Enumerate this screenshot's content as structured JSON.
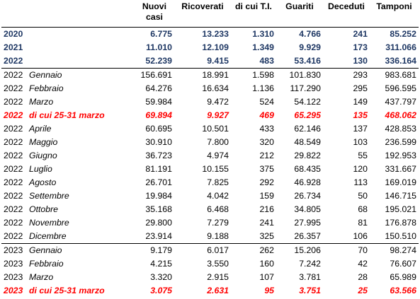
{
  "headers": [
    "",
    "Nuovi casi",
    "Ricoverati",
    "di cui T.I.",
    "Guariti",
    "Deceduti",
    "Tamponi"
  ],
  "header_nuovi_1": "Nuovi",
  "header_nuovi_2": "casi",
  "annual": [
    {
      "year": "2020",
      "nuovi": "6.775",
      "ricoverati": "13.233",
      "ti": "1.310",
      "guariti": "4.766",
      "deceduti": "241",
      "tamponi": "85.252"
    },
    {
      "year": "2021",
      "nuovi": "11.010",
      "ricoverati": "12.109",
      "ti": "1.349",
      "guariti": "9.929",
      "deceduti": "173",
      "tamponi": "311.066"
    },
    {
      "year": "2022",
      "nuovi": "52.239",
      "ricoverati": "9.415",
      "ti": "483",
      "guariti": "53.416",
      "deceduti": "130",
      "tamponi": "336.164"
    }
  ],
  "rows2022": [
    {
      "year": "2022",
      "month": "Gennaio",
      "nuovi": "156.691",
      "ricoverati": "18.991",
      "ti": "1.598",
      "guariti": "101.830",
      "deceduti": "293",
      "tamponi": "983.681"
    },
    {
      "year": "2022",
      "month": "Febbraio",
      "nuovi": "64.276",
      "ricoverati": "16.634",
      "ti": "1.136",
      "guariti": "117.290",
      "deceduti": "295",
      "tamponi": "596.595"
    },
    {
      "year": "2022",
      "month": "Marzo",
      "nuovi": "59.984",
      "ricoverati": "9.472",
      "ti": "524",
      "guariti": "54.122",
      "deceduti": "149",
      "tamponi": "437.797"
    },
    {
      "year": "2022",
      "month": "di cui 25-31 marzo",
      "nuovi": "69.894",
      "ricoverati": "9.927",
      "ti": "469",
      "guariti": "65.295",
      "deceduti": "135",
      "tamponi": "468.062",
      "highlight": true
    },
    {
      "year": "2022",
      "month": "Aprile",
      "nuovi": "60.695",
      "ricoverati": "10.501",
      "ti": "433",
      "guariti": "62.146",
      "deceduti": "137",
      "tamponi": "428.853"
    },
    {
      "year": "2022",
      "month": "Maggio",
      "nuovi": "30.910",
      "ricoverati": "7.800",
      "ti": "320",
      "guariti": "48.549",
      "deceduti": "103",
      "tamponi": "236.599"
    },
    {
      "year": "2022",
      "month": "Giugno",
      "nuovi": "36.723",
      "ricoverati": "4.974",
      "ti": "212",
      "guariti": "29.822",
      "deceduti": "55",
      "tamponi": "192.953"
    },
    {
      "year": "2022",
      "month": "Luglio",
      "nuovi": "81.191",
      "ricoverati": "10.155",
      "ti": "375",
      "guariti": "68.435",
      "deceduti": "120",
      "tamponi": "331.667"
    },
    {
      "year": "2022",
      "month": "Agosto",
      "nuovi": "26.701",
      "ricoverati": "7.825",
      "ti": "292",
      "guariti": "46.928",
      "deceduti": "113",
      "tamponi": "169.019"
    },
    {
      "year": "2022",
      "month": "Settembre",
      "nuovi": "19.984",
      "ricoverati": "4.042",
      "ti": "159",
      "guariti": "26.734",
      "deceduti": "50",
      "tamponi": "146.715"
    },
    {
      "year": "2022",
      "month": "Ottobre",
      "nuovi": "35.168",
      "ricoverati": "6.468",
      "ti": "216",
      "guariti": "34.805",
      "deceduti": "68",
      "tamponi": "195.021"
    },
    {
      "year": "2022",
      "month": "Novembre",
      "nuovi": "29.800",
      "ricoverati": "7.279",
      "ti": "241",
      "guariti": "27.995",
      "deceduti": "81",
      "tamponi": "176.878"
    },
    {
      "year": "2022",
      "month": "Dicembre",
      "nuovi": "23.914",
      "ricoverati": "9.188",
      "ti": "325",
      "guariti": "26.357",
      "deceduti": "106",
      "tamponi": "150.510"
    }
  ],
  "rows2023": [
    {
      "year": "2023",
      "month": "Gennaio",
      "nuovi": "9.179",
      "ricoverati": "6.017",
      "ti": "262",
      "guariti": "15.206",
      "deceduti": "70",
      "tamponi": "98.274"
    },
    {
      "year": "2023",
      "month": "Febbraio",
      "nuovi": "4.215",
      "ricoverati": "3.550",
      "ti": "160",
      "guariti": "7.242",
      "deceduti": "42",
      "tamponi": "76.607"
    },
    {
      "year": "2023",
      "month": "Marzo",
      "nuovi": "3.320",
      "ricoverati": "2.915",
      "ti": "107",
      "guariti": "3.781",
      "deceduti": "28",
      "tamponi": "65.989"
    },
    {
      "year": "2023",
      "month": "di cui 25-31 marzo",
      "nuovi": "3.075",
      "ricoverati": "2.631",
      "ti": "95",
      "guariti": "3.751",
      "deceduti": "25",
      "tamponi": "63.566",
      "highlight": true
    }
  ],
  "colors": {
    "annual": "#1f3864",
    "highlight": "#ff0000",
    "text": "#000000"
  }
}
